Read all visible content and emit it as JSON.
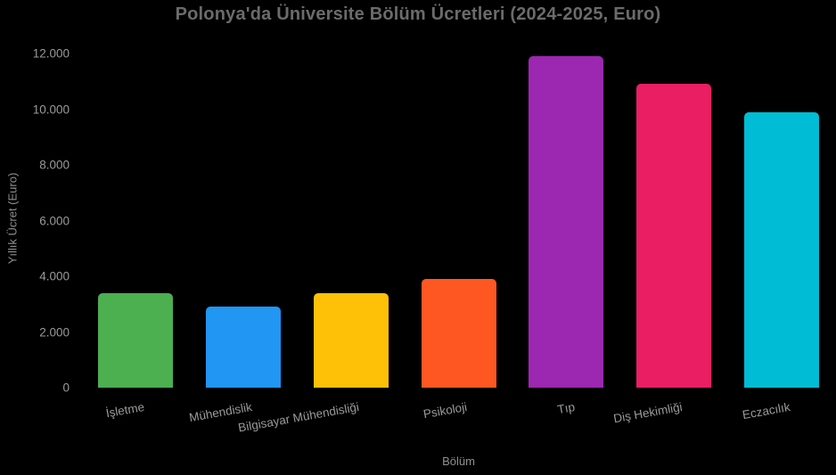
{
  "style": {
    "background": "#000000",
    "title_color": "#6b6b6b",
    "tick_color": "#9a9a9a",
    "axis_label_color": "#8f8f8f"
  },
  "chart_data": {
    "type": "bar",
    "title": "Polonya'da Üniversite Bölüm Ücretleri (2024-2025, Euro)",
    "xlabel": "Bölüm",
    "ylabel": "Yıllık Ücret (Euro)",
    "categories": [
      "İşletme",
      "Mühendislik",
      "Bilgisayar Mühendisliği",
      "Psikoloji",
      "Tıp",
      "Diş Hekimliği",
      "Eczacılık"
    ],
    "values": [
      3400,
      2900,
      3400,
      3900,
      11900,
      10900,
      9900
    ],
    "colors": [
      "#4caf50",
      "#2196f3",
      "#ffc107",
      "#ff5722",
      "#9c27b0",
      "#e91e63",
      "#00bcd4"
    ],
    "ylim": [
      0,
      12000
    ],
    "yticks": [
      0,
      2000,
      4000,
      6000,
      8000,
      10000,
      12000
    ],
    "ytick_labels": [
      "0",
      "2.000",
      "4.000",
      "6.000",
      "8.000",
      "10.000",
      "12.000"
    ],
    "grid": false,
    "legend": null,
    "background": "#000000",
    "x_tick_rotation_deg": 10
  }
}
